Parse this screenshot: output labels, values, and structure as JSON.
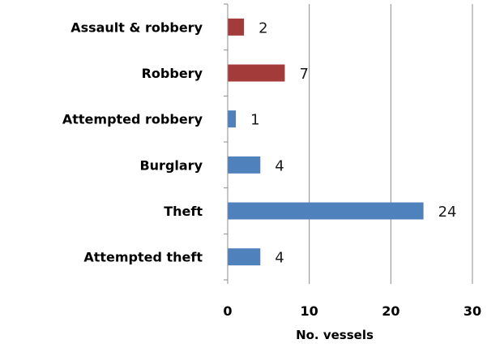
{
  "chart_data": {
    "type": "bar",
    "orientation": "horizontal",
    "categories": [
      "Assault & robbery",
      "Robbery",
      "Attempted robbery",
      "Burglary",
      "Theft",
      "Attempted theft"
    ],
    "values": [
      2,
      7,
      1,
      4,
      24,
      4
    ],
    "bar_colors": [
      "#a33b3b",
      "#a33b3b",
      "#4f81bd",
      "#4f81bd",
      "#4f81bd",
      "#4f81bd"
    ],
    "xlabel": "No. vessels",
    "ylabel": "",
    "title": "",
    "xlim": [
      0,
      30
    ],
    "xticks": [
      0,
      10,
      20,
      30
    ],
    "grid": "vertical",
    "legend": "none"
  }
}
